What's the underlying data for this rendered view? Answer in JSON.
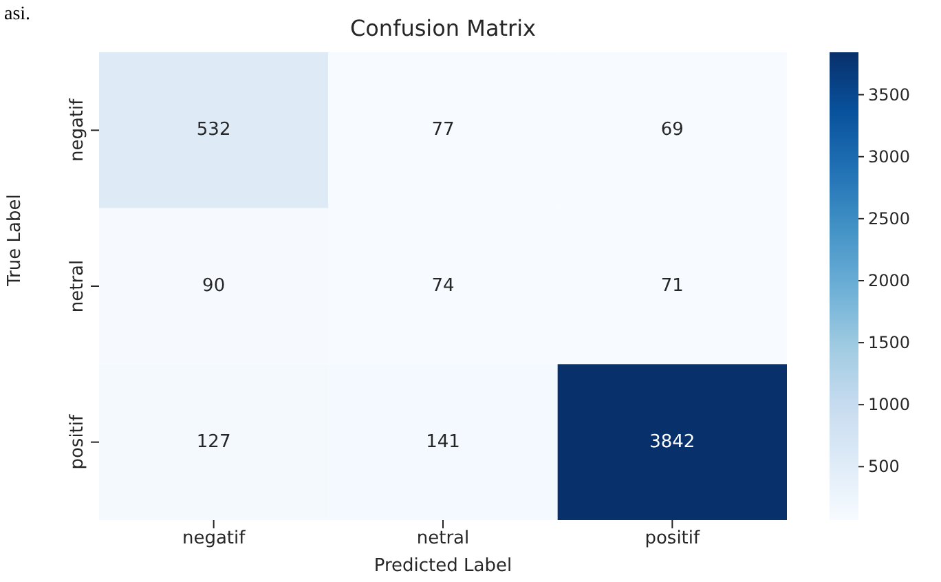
{
  "chart_data": {
    "type": "heatmap",
    "title": "Confusion Matrix",
    "xlabel": "Predicted Label",
    "ylabel": "True Label",
    "categories": [
      "negatif",
      "netral",
      "positif"
    ],
    "y_categories": [
      "negatif",
      "netral",
      "positif"
    ],
    "cells": [
      [
        532,
        77,
        69
      ],
      [
        90,
        74,
        71
      ],
      [
        127,
        141,
        3842
      ]
    ],
    "clim": [
      69,
      3842
    ],
    "cticks": [
      500,
      1000,
      1500,
      2000,
      2500,
      3000,
      3500
    ],
    "data_labels": true,
    "annotations": [
      "asi."
    ]
  }
}
